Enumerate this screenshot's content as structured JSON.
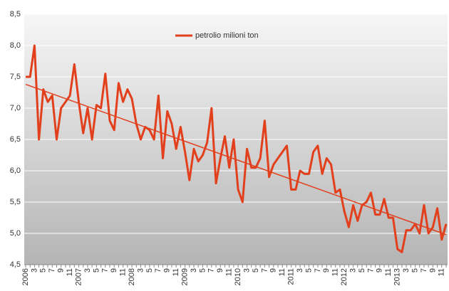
{
  "chart_data": {
    "type": "line",
    "legend_label": "petrolio milioni ton",
    "categories": [
      "2006",
      null,
      "3",
      null,
      "5",
      null,
      "7",
      null,
      "9",
      null,
      "11",
      null,
      "2007",
      null,
      "3",
      null,
      "5",
      null,
      "7",
      null,
      "9",
      null,
      "11",
      null,
      "2008",
      null,
      "3",
      null,
      "5",
      null,
      "7",
      null,
      "9",
      null,
      "11",
      null,
      "2009",
      null,
      "3",
      null,
      "5",
      null,
      "7",
      null,
      "9",
      null,
      "11",
      null,
      "2010",
      null,
      "3",
      null,
      "5",
      null,
      "7",
      null,
      "9",
      null,
      "11",
      null,
      "2011",
      null,
      "3",
      null,
      "5",
      null,
      "7",
      null,
      "9",
      null,
      "11",
      null,
      "2012",
      null,
      "3",
      null,
      "5",
      null,
      "7",
      null,
      "9",
      null,
      "11",
      null,
      "2013",
      null,
      "3",
      null,
      "5",
      null,
      "7",
      null,
      "9",
      null,
      "11",
      null
    ],
    "series": [
      {
        "name": "petrolio milioni ton",
        "color": "#e2401c",
        "values": [
          7.5,
          7.5,
          8.0,
          6.5,
          7.3,
          7.1,
          7.2,
          6.5,
          7.0,
          7.1,
          7.2,
          7.7,
          7.1,
          6.6,
          7.0,
          6.5,
          7.05,
          7.0,
          7.55,
          6.8,
          6.65,
          7.4,
          7.1,
          7.3,
          7.15,
          6.75,
          6.5,
          6.7,
          6.65,
          6.5,
          7.2,
          6.2,
          6.95,
          6.75,
          6.35,
          6.7,
          6.3,
          5.85,
          6.35,
          6.15,
          6.25,
          6.45,
          7.0,
          5.8,
          6.2,
          6.55,
          6.05,
          6.5,
          5.7,
          5.5,
          6.35,
          6.05,
          6.05,
          6.2,
          6.8,
          5.9,
          6.1,
          6.2,
          6.3,
          6.4,
          5.7,
          5.7,
          6.0,
          5.95,
          5.95,
          6.3,
          6.4,
          5.95,
          6.2,
          6.1,
          5.65,
          5.7,
          5.35,
          5.1,
          5.45,
          5.2,
          5.45,
          5.5,
          5.65,
          5.3,
          5.3,
          5.55,
          5.25,
          5.25,
          4.75,
          4.7,
          5.05,
          5.05,
          5.15,
          5.0,
          5.45,
          5.0,
          5.1,
          5.4,
          4.9,
          5.15
        ]
      }
    ],
    "trendline": {
      "color": "#e2401c",
      "values": [
        7.38,
        4.98
      ]
    },
    "ylim": [
      4.5,
      8.5
    ],
    "yticks": [
      {
        "value": 4.5,
        "label": "4,5"
      },
      {
        "value": 5.0,
        "label": "5,0"
      },
      {
        "value": 5.5,
        "label": "5,5"
      },
      {
        "value": 6.0,
        "label": "6,0"
      },
      {
        "value": 6.5,
        "label": "6,5"
      },
      {
        "value": 7.0,
        "label": "7,0"
      },
      {
        "value": 7.5,
        "label": "7,5"
      },
      {
        "value": 8.0,
        "label": "8,0"
      },
      {
        "value": 8.5,
        "label": "8,5"
      }
    ],
    "grid": true
  }
}
